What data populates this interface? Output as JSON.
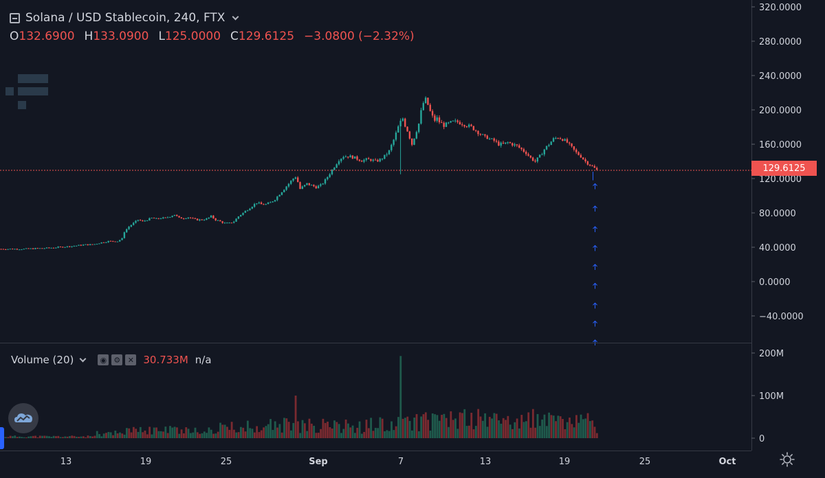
{
  "header": {
    "symbol_line": "Solana / USD Stablecoin, 240, FTX",
    "open_label": "O",
    "open_value": "132.6900",
    "high_label": "H",
    "high_value": "133.0900",
    "low_label": "L",
    "low_value": "125.0000",
    "close_label": "C",
    "close_value": "129.6125",
    "change": "−3.0800 (−2.32%)"
  },
  "last_price_label": "129.6125",
  "volume_legend": {
    "title": "Volume (20)",
    "value": "30.733M",
    "extra": "n/a"
  },
  "colors": {
    "bg": "#131722",
    "up": "#26a69a",
    "down": "#ef5350",
    "vol_up": "#1f5a4c",
    "vol_down": "#7a2a30",
    "grid": "#2a2e39",
    "arrow": "#2962ff"
  },
  "chart_data": {
    "type": "candlestick",
    "price_axis": {
      "ticks": [
        "320.0000",
        "280.0000",
        "240.0000",
        "200.0000",
        "160.0000",
        "120.0000",
        "80.0000",
        "40.0000",
        "0.0000",
        "−40.0000"
      ],
      "range": [
        -70,
        330
      ]
    },
    "volume_axis": {
      "ticks": [
        "200M",
        "100M",
        "0"
      ],
      "range": [
        0,
        220
      ]
    },
    "x_ticks": [
      "13",
      "19",
      "25",
      "Sep",
      "7",
      "13",
      "19",
      "25",
      "Oct"
    ],
    "last_price": 129.6125,
    "price_path": [
      [
        0,
        38
      ],
      [
        10,
        38
      ],
      [
        20,
        39
      ],
      [
        30,
        41
      ],
      [
        37,
        43
      ],
      [
        40,
        43
      ],
      [
        43,
        45
      ],
      [
        47,
        47
      ],
      [
        51,
        47
      ],
      [
        53,
        50
      ],
      [
        54,
        58
      ],
      [
        56,
        64
      ],
      [
        58,
        68
      ],
      [
        60,
        72
      ],
      [
        62,
        70
      ],
      [
        64,
        72
      ],
      [
        66,
        74
      ],
      [
        68,
        73
      ],
      [
        70,
        74
      ],
      [
        72,
        74
      ],
      [
        74,
        76
      ],
      [
        76,
        78
      ],
      [
        78,
        74
      ],
      [
        80,
        74
      ],
      [
        82,
        75
      ],
      [
        84,
        73
      ],
      [
        86,
        72
      ],
      [
        88,
        72
      ],
      [
        90,
        73
      ],
      [
        92,
        76
      ],
      [
        94,
        72
      ],
      [
        96,
        70
      ],
      [
        98,
        68
      ],
      [
        100,
        68
      ],
      [
        102,
        70
      ],
      [
        104,
        76
      ],
      [
        106,
        80
      ],
      [
        108,
        84
      ],
      [
        110,
        88
      ],
      [
        112,
        92
      ],
      [
        114,
        90
      ],
      [
        116,
        90
      ],
      [
        118,
        92
      ],
      [
        120,
        96
      ],
      [
        122,
        102
      ],
      [
        124,
        108
      ],
      [
        126,
        114
      ],
      [
        128,
        120
      ],
      [
        129,
        122
      ],
      [
        130,
        116
      ],
      [
        131,
        108
      ],
      [
        132,
        110
      ],
      [
        134,
        114
      ],
      [
        136,
        112
      ],
      [
        138,
        110
      ],
      [
        140,
        112
      ],
      [
        142,
        118
      ],
      [
        144,
        126
      ],
      [
        146,
        134
      ],
      [
        148,
        142
      ],
      [
        150,
        146
      ],
      [
        152,
        146
      ],
      [
        154,
        145
      ],
      [
        156,
        143
      ],
      [
        158,
        141
      ],
      [
        160,
        142
      ],
      [
        162,
        142
      ],
      [
        164,
        140
      ],
      [
        166,
        142
      ],
      [
        168,
        146
      ],
      [
        170,
        152
      ],
      [
        172,
        165
      ],
      [
        174,
        180
      ],
      [
        175,
        186
      ],
      [
        176,
        190
      ],
      [
        177,
        182
      ],
      [
        178,
        176
      ],
      [
        179,
        168
      ],
      [
        180,
        160
      ],
      [
        181,
        168
      ],
      [
        182,
        176
      ],
      [
        183,
        184
      ],
      [
        184,
        198
      ],
      [
        185,
        208
      ],
      [
        186,
        212
      ],
      [
        187,
        206
      ],
      [
        188,
        198
      ],
      [
        189,
        192
      ],
      [
        190,
        188
      ],
      [
        191,
        190
      ],
      [
        192,
        186
      ],
      [
        194,
        182
      ],
      [
        196,
        184
      ],
      [
        198,
        186
      ],
      [
        200,
        186
      ],
      [
        202,
        184
      ],
      [
        204,
        182
      ],
      [
        206,
        180
      ],
      [
        208,
        176
      ],
      [
        210,
        172
      ],
      [
        211,
        170
      ],
      [
        212,
        168
      ],
      [
        213,
        168
      ],
      [
        214,
        166
      ],
      [
        216,
        164
      ],
      [
        218,
        160
      ],
      [
        220,
        160
      ],
      [
        222,
        162
      ],
      [
        224,
        160
      ],
      [
        226,
        158
      ],
      [
        228,
        154
      ],
      [
        230,
        150
      ],
      [
        232,
        144
      ],
      [
        234,
        140
      ],
      [
        236,
        146
      ],
      [
        238,
        154
      ],
      [
        240,
        160
      ],
      [
        242,
        166
      ],
      [
        244,
        168
      ],
      [
        246,
        166
      ],
      [
        248,
        162
      ],
      [
        250,
        156
      ],
      [
        252,
        150
      ],
      [
        254,
        146
      ],
      [
        256,
        140
      ],
      [
        258,
        136
      ],
      [
        260,
        132
      ],
      [
        261,
        130
      ]
    ],
    "volume_spikes": [
      [
        42,
        16
      ],
      [
        76,
        25
      ],
      [
        83,
        10
      ],
      [
        92,
        12
      ],
      [
        107,
        10
      ],
      [
        110,
        18
      ],
      [
        112,
        25
      ],
      [
        129,
        40
      ],
      [
        140,
        18
      ],
      [
        158,
        8
      ],
      [
        167,
        40
      ],
      [
        175,
        60
      ],
      [
        176,
        45
      ],
      [
        181,
        48
      ],
      [
        192,
        35
      ],
      [
        195,
        40
      ],
      [
        210,
        50
      ],
      [
        212,
        55
      ],
      [
        222,
        48
      ],
      [
        233,
        62
      ],
      [
        236,
        22
      ],
      [
        248,
        36
      ],
      [
        255,
        42
      ],
      [
        257,
        52
      ],
      [
        261,
        8
      ]
    ],
    "volume_baseline": [
      [
        0,
        4
      ],
      [
        40,
        4
      ],
      [
        50,
        15
      ],
      [
        100,
        25
      ],
      [
        120,
        30
      ],
      [
        160,
        30
      ],
      [
        200,
        45
      ],
      [
        261,
        35
      ]
    ],
    "projected_arrows": [
      114,
      88,
      64,
      42,
      20,
      -2,
      -25,
      -46,
      -68
    ]
  }
}
